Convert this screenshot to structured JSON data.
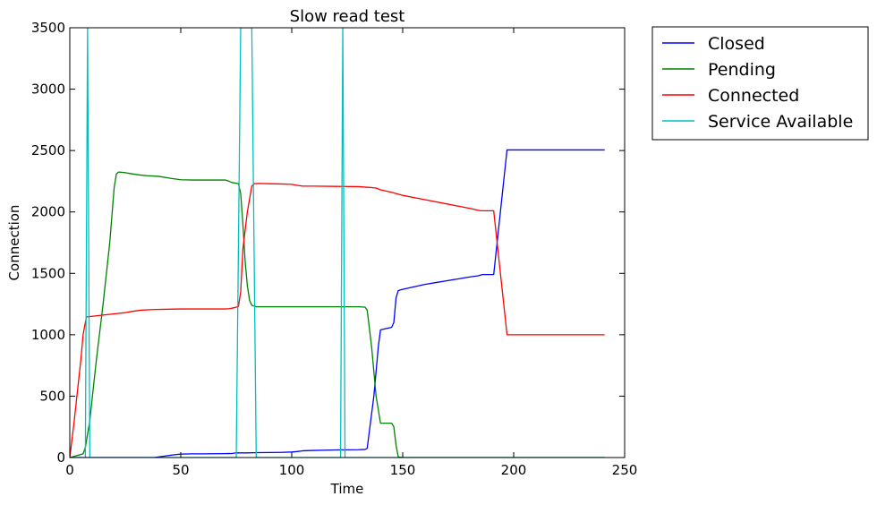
{
  "chart_data": {
    "type": "line",
    "title": "Slow read test",
    "xlabel": "Time",
    "ylabel": "Connection",
    "xlim": [
      0,
      250
    ],
    "ylim": [
      0,
      3500
    ],
    "xticks": [
      0,
      50,
      100,
      150,
      200,
      250
    ],
    "yticks": [
      0,
      500,
      1000,
      1500,
      2000,
      2500,
      3000,
      3500
    ],
    "grid": false,
    "legend_position": "outside-top-right",
    "series": [
      {
        "name": "Closed",
        "color": "#0000ff",
        "points": [
          [
            0,
            0
          ],
          [
            38,
            0
          ],
          [
            42,
            10
          ],
          [
            46,
            20
          ],
          [
            50,
            28
          ],
          [
            55,
            30
          ],
          [
            60,
            30
          ],
          [
            65,
            31
          ],
          [
            70,
            32
          ],
          [
            73,
            33
          ],
          [
            75,
            38
          ],
          [
            80,
            38
          ],
          [
            85,
            40
          ],
          [
            90,
            41
          ],
          [
            95,
            42
          ],
          [
            100,
            45
          ],
          [
            102,
            48
          ],
          [
            105,
            55
          ],
          [
            110,
            58
          ],
          [
            115,
            60
          ],
          [
            120,
            62
          ],
          [
            125,
            63
          ],
          [
            130,
            64
          ],
          [
            133,
            66
          ],
          [
            134,
            75
          ],
          [
            137,
            500
          ],
          [
            139,
            900
          ],
          [
            140,
            1040
          ],
          [
            145,
            1060
          ],
          [
            146,
            1100
          ],
          [
            147,
            1300
          ],
          [
            148,
            1360
          ],
          [
            150,
            1370
          ],
          [
            155,
            1390
          ],
          [
            160,
            1410
          ],
          [
            165,
            1425
          ],
          [
            170,
            1440
          ],
          [
            175,
            1455
          ],
          [
            180,
            1470
          ],
          [
            184,
            1480
          ],
          [
            186,
            1490
          ],
          [
            191,
            1490
          ],
          [
            197,
            2505
          ],
          [
            241,
            2505
          ]
        ]
      },
      {
        "name": "Pending",
        "color": "#008000",
        "points": [
          [
            0,
            0
          ],
          [
            6,
            30
          ],
          [
            7,
            80
          ],
          [
            9,
            300
          ],
          [
            12,
            800
          ],
          [
            15,
            1250
          ],
          [
            18,
            1750
          ],
          [
            20,
            2200
          ],
          [
            21,
            2310
          ],
          [
            22,
            2325
          ],
          [
            25,
            2320
          ],
          [
            28,
            2310
          ],
          [
            32,
            2300
          ],
          [
            35,
            2295
          ],
          [
            40,
            2290
          ],
          [
            45,
            2275
          ],
          [
            50,
            2262
          ],
          [
            55,
            2260
          ],
          [
            60,
            2260
          ],
          [
            65,
            2260
          ],
          [
            70,
            2260
          ],
          [
            71,
            2255
          ],
          [
            73,
            2240
          ],
          [
            76,
            2230
          ],
          [
            77,
            2150
          ],
          [
            78,
            1900
          ],
          [
            79,
            1600
          ],
          [
            80,
            1400
          ],
          [
            81,
            1280
          ],
          [
            82,
            1240
          ],
          [
            84,
            1228
          ],
          [
            90,
            1228
          ],
          [
            100,
            1228
          ],
          [
            110,
            1228
          ],
          [
            120,
            1228
          ],
          [
            130,
            1228
          ],
          [
            133,
            1225
          ],
          [
            134,
            1200
          ],
          [
            136,
            900
          ],
          [
            138,
            500
          ],
          [
            140,
            280
          ],
          [
            145,
            280
          ],
          [
            146,
            250
          ],
          [
            147,
            100
          ],
          [
            148,
            5
          ],
          [
            150,
            0
          ],
          [
            241,
            0
          ]
        ]
      },
      {
        "name": "Connected",
        "color": "#ff0000",
        "points": [
          [
            0,
            0
          ],
          [
            2,
            300
          ],
          [
            5,
            800
          ],
          [
            6,
            1000
          ],
          [
            7,
            1100
          ],
          [
            7.5,
            1145
          ],
          [
            10,
            1150
          ],
          [
            15,
            1160
          ],
          [
            20,
            1170
          ],
          [
            25,
            1180
          ],
          [
            28,
            1190
          ],
          [
            32,
            1200
          ],
          [
            37,
            1205
          ],
          [
            45,
            1208
          ],
          [
            50,
            1210
          ],
          [
            60,
            1210
          ],
          [
            70,
            1210
          ],
          [
            72,
            1212
          ],
          [
            74,
            1220
          ],
          [
            76,
            1230
          ],
          [
            77,
            1350
          ],
          [
            78,
            1700
          ],
          [
            80,
            2000
          ],
          [
            82,
            2210
          ],
          [
            83,
            2230
          ],
          [
            85,
            2232
          ],
          [
            90,
            2230
          ],
          [
            95,
            2228
          ],
          [
            100,
            2225
          ],
          [
            103,
            2215
          ],
          [
            105,
            2210
          ],
          [
            110,
            2210
          ],
          [
            120,
            2208
          ],
          [
            130,
            2206
          ],
          [
            135,
            2200
          ],
          [
            138,
            2195
          ],
          [
            140,
            2180
          ],
          [
            145,
            2160
          ],
          [
            150,
            2135
          ],
          [
            160,
            2100
          ],
          [
            170,
            2065
          ],
          [
            180,
            2030
          ],
          [
            185,
            2010
          ],
          [
            191,
            2010
          ],
          [
            197,
            1000
          ],
          [
            241,
            1000
          ]
        ]
      },
      {
        "name": "Service Available",
        "color": "#00bfbf",
        "points": [
          [
            0,
            0
          ],
          [
            7,
            0
          ],
          [
            8,
            3500
          ],
          [
            9,
            0
          ],
          [
            75,
            0
          ],
          [
            77,
            3500
          ],
          [
            82,
            3500
          ],
          [
            84,
            0
          ],
          [
            122,
            0
          ],
          [
            123,
            3500
          ],
          [
            124,
            0
          ],
          [
            241,
            0
          ]
        ]
      }
    ]
  }
}
